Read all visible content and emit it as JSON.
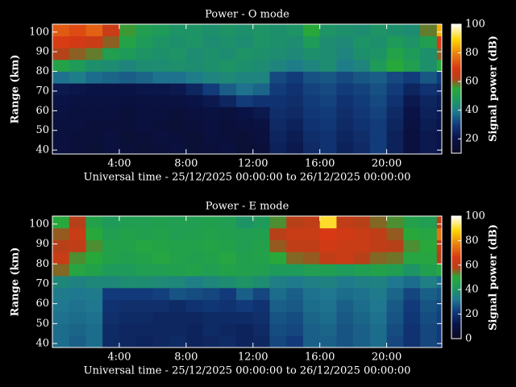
{
  "chart_data": [
    {
      "type": "heatmap",
      "title": "Power - O mode",
      "x_label": "Universal time - 25/12/2025 00:00:00 to 26/12/2025 00:00:00",
      "y_label": "Range (km)",
      "colorbar_label": "Signal power (dB)",
      "xlim": [
        0,
        23.3
      ],
      "xticks": [
        {
          "value": 4,
          "label": "4:00"
        },
        {
          "value": 8,
          "label": "8:00"
        },
        {
          "value": 12,
          "label": "12:00"
        },
        {
          "value": 16,
          "label": "16:00"
        },
        {
          "value": 20,
          "label": "20:00"
        }
      ],
      "ylim": [
        38,
        104
      ],
      "yticks": [
        40,
        50,
        60,
        70,
        80,
        90,
        100
      ],
      "zlim": [
        10,
        100
      ],
      "zticks": [
        20,
        40,
        60,
        80,
        100
      ],
      "x_edges": [
        0,
        1,
        2,
        3,
        4,
        5,
        6,
        7,
        8,
        9,
        10,
        11,
        12,
        13,
        14,
        15,
        16,
        17,
        18,
        19,
        20,
        21,
        22,
        23,
        23.3
      ],
      "y_edges": [
        38,
        44,
        50,
        56,
        62,
        68,
        74,
        80,
        86,
        92,
        98,
        104
      ],
      "z": [
        [
          18,
          17,
          16,
          18,
          17,
          16,
          17,
          18,
          16,
          17,
          18,
          16,
          17,
          24,
          22,
          26,
          28,
          24,
          26,
          30,
          24,
          18,
          22,
          20
        ],
        [
          18,
          17,
          17,
          18,
          16,
          17,
          18,
          17,
          16,
          18,
          17,
          16,
          18,
          25,
          23,
          27,
          28,
          25,
          27,
          30,
          24,
          18,
          22,
          20
        ],
        [
          18,
          18,
          17,
          17,
          17,
          18,
          17,
          16,
          17,
          18,
          17,
          18,
          19,
          26,
          24,
          28,
          29,
          26,
          28,
          30,
          25,
          19,
          23,
          21
        ],
        [
          19,
          18,
          18,
          18,
          17,
          18,
          18,
          17,
          18,
          19,
          18,
          20,
          22,
          27,
          26,
          29,
          30,
          27,
          29,
          31,
          26,
          20,
          24,
          22
        ],
        [
          20,
          19,
          19,
          19,
          18,
          19,
          19,
          19,
          20,
          22,
          25,
          30,
          28,
          28,
          27,
          30,
          31,
          28,
          30,
          32,
          28,
          22,
          25,
          23
        ],
        [
          22,
          21,
          20,
          20,
          20,
          21,
          21,
          22,
          25,
          30,
          35,
          38,
          36,
          30,
          28,
          31,
          32,
          30,
          31,
          33,
          30,
          25,
          28,
          26
        ],
        [
          38,
          40,
          37,
          36,
          35,
          36,
          38,
          38,
          40,
          42,
          43,
          42,
          42,
          32,
          30,
          33,
          34,
          32,
          34,
          35,
          32,
          30,
          34,
          30
        ],
        [
          52,
          48,
          45,
          44,
          42,
          44,
          44,
          45,
          44,
          45,
          46,
          45,
          44,
          42,
          40,
          42,
          44,
          40,
          42,
          48,
          55,
          50,
          45,
          55
        ],
        [
          62,
          60,
          58,
          50,
          48,
          46,
          45,
          46,
          44,
          45,
          44,
          46,
          45,
          44,
          43,
          45,
          44,
          42,
          45,
          46,
          52,
          48,
          45,
          60
        ],
        [
          70,
          68,
          66,
          60,
          52,
          48,
          46,
          45,
          46,
          44,
          45,
          44,
          46,
          45,
          44,
          48,
          44,
          43,
          46,
          45,
          48,
          46,
          50,
          70
        ],
        [
          74,
          72,
          75,
          66,
          56,
          50,
          48,
          46,
          46,
          45,
          46,
          45,
          46,
          45,
          46,
          55,
          46,
          45,
          44,
          46,
          45,
          44,
          58,
          85
        ]
      ]
    },
    {
      "type": "heatmap",
      "title": "Power - E mode",
      "x_label": "Universal time - 25/12/2025 00:00:00 to 26/12/2025 00:00:00",
      "y_label": "Range (km)",
      "colorbar_label": "Signal power (dB)",
      "xlim": [
        0,
        23.3
      ],
      "xticks": [
        {
          "value": 4,
          "label": "4:00"
        },
        {
          "value": 8,
          "label": "8:00"
        },
        {
          "value": 12,
          "label": "12:00"
        },
        {
          "value": 16,
          "label": "16:00"
        },
        {
          "value": 20,
          "label": "20:00"
        }
      ],
      "ylim": [
        38,
        104
      ],
      "yticks": [
        40,
        50,
        60,
        70,
        80,
        90,
        100
      ],
      "zlim": [
        0,
        100
      ],
      "zticks": [
        0,
        20,
        40,
        60,
        80,
        100
      ],
      "x_edges": [
        0,
        1,
        2,
        3,
        4,
        5,
        6,
        7,
        8,
        9,
        10,
        11,
        12,
        13,
        14,
        15,
        16,
        17,
        18,
        19,
        20,
        21,
        22,
        23,
        23.3
      ],
      "y_edges": [
        38,
        44,
        50,
        56,
        62,
        68,
        74,
        80,
        86,
        92,
        98,
        104
      ],
      "z": [
        [
          30,
          28,
          30,
          18,
          17,
          16,
          17,
          18,
          16,
          17,
          18,
          16,
          17,
          24,
          22,
          28,
          28,
          26,
          28,
          30,
          24,
          20,
          24,
          22
        ],
        [
          30,
          29,
          30,
          18,
          17,
          17,
          17,
          17,
          16,
          18,
          17,
          16,
          18,
          25,
          24,
          28,
          29,
          26,
          28,
          30,
          25,
          20,
          24,
          22
        ],
        [
          31,
          30,
          31,
          19,
          18,
          18,
          17,
          17,
          17,
          18,
          18,
          18,
          19,
          26,
          25,
          29,
          30,
          27,
          29,
          31,
          26,
          21,
          25,
          23
        ],
        [
          32,
          31,
          32,
          20,
          19,
          19,
          19,
          18,
          20,
          21,
          20,
          22,
          20,
          28,
          27,
          30,
          31,
          28,
          30,
          32,
          27,
          22,
          26,
          24
        ],
        [
          33,
          32,
          33,
          22,
          22,
          22,
          23,
          26,
          25,
          24,
          22,
          28,
          24,
          30,
          28,
          31,
          32,
          30,
          31,
          33,
          29,
          24,
          28,
          26
        ],
        [
          36,
          35,
          36,
          36,
          38,
          38,
          37,
          36,
          34,
          36,
          38,
          40,
          38,
          34,
          33,
          34,
          35,
          33,
          34,
          35,
          32,
          30,
          34,
          30
        ],
        [
          55,
          48,
          46,
          42,
          42,
          44,
          44,
          45,
          46,
          44,
          46,
          45,
          44,
          42,
          42,
          44,
          44,
          42,
          44,
          46,
          44,
          40,
          45,
          48
        ],
        [
          62,
          52,
          50,
          46,
          45,
          46,
          48,
          46,
          45,
          46,
          48,
          45,
          46,
          50,
          55,
          56,
          60,
          62,
          58,
          55,
          54,
          48,
          48,
          58
        ],
        [
          58,
          60,
          52,
          46,
          46,
          48,
          47,
          46,
          46,
          47,
          46,
          44,
          46,
          56,
          60,
          60,
          64,
          62,
          62,
          60,
          58,
          52,
          50,
          62
        ],
        [
          56,
          62,
          50,
          44,
          46,
          45,
          46,
          44,
          45,
          46,
          45,
          44,
          45,
          58,
          62,
          62,
          66,
          64,
          62,
          60,
          56,
          50,
          48,
          75
        ],
        [
          50,
          58,
          46,
          42,
          44,
          44,
          45,
          44,
          44,
          45,
          44,
          40,
          42,
          52,
          58,
          60,
          90,
          60,
          58,
          55,
          52,
          46,
          44,
          60
        ]
      ]
    }
  ]
}
